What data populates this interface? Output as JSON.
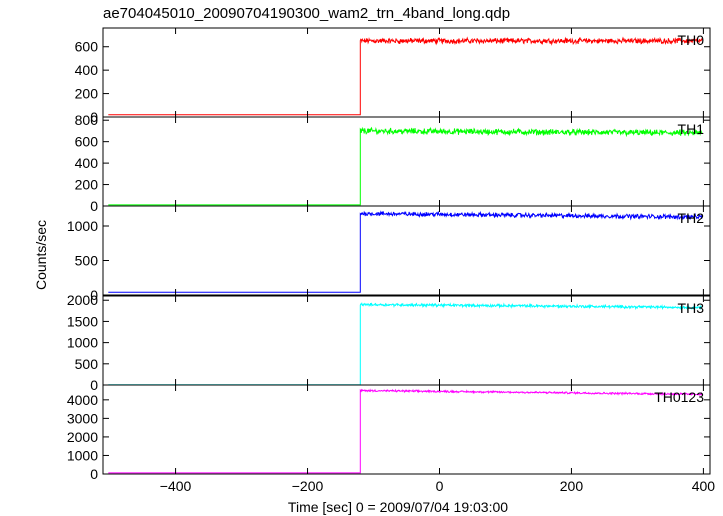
{
  "chart_data": {
    "type": "line",
    "title": "ae704045010_20090704190300_wam2_trn_4band_long.qdp",
    "xlabel": "Time [sec] 0 = 2009/07/04 19:03:00",
    "ylabel": "Counts/sec",
    "xlim": [
      -510,
      410
    ],
    "x_ticks": [
      -400,
      -200,
      0,
      200,
      400
    ],
    "step_time": -120,
    "panels": [
      {
        "name": "TH0",
        "color": "#ff0000",
        "ylim": [
          0,
          760
        ],
        "yticks": [
          0,
          200,
          400,
          600
        ],
        "pre_level": 20,
        "post_start": 650,
        "post_end": 650,
        "noise": 18
      },
      {
        "name": "TH1",
        "color": "#00ff00",
        "ylim": [
          0,
          830
        ],
        "yticks": [
          0,
          200,
          400,
          600,
          800
        ],
        "pre_level": 10,
        "post_start": 700,
        "post_end": 680,
        "noise": 22
      },
      {
        "name": "TH2",
        "color": "#0000ff",
        "ylim": [
          0,
          1290
        ],
        "yticks": [
          0,
          500,
          1000
        ],
        "pre_level": 40,
        "post_start": 1180,
        "post_end": 1130,
        "noise": 25
      },
      {
        "name": "TH3",
        "color": "#00ffff",
        "ylim": [
          0,
          2100
        ],
        "yticks": [
          0,
          500,
          1000,
          1500,
          2000
        ],
        "pre_level": 5,
        "post_start": 1900,
        "post_end": 1830,
        "noise": 25
      },
      {
        "name": "TH0123",
        "color": "#ff00ff",
        "ylim": [
          0,
          4800
        ],
        "yticks": [
          0,
          1000,
          2000,
          3000,
          4000
        ],
        "pre_level": 60,
        "post_start": 4500,
        "post_end": 4300,
        "noise": 40
      }
    ]
  }
}
